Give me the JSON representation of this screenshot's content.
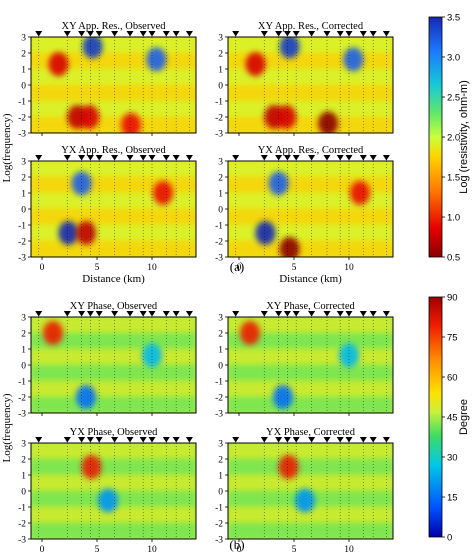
{
  "figure": {
    "part_labels": [
      "(a)",
      "(b)"
    ]
  },
  "chart_data": [
    {
      "type": "heatmap",
      "part": "(a)",
      "panels": [
        {
          "title": "XY App. Res., Observed",
          "ylabel": "Log(frequency)",
          "xlabel": ""
        },
        {
          "title": "XY App. Res., Corrected",
          "ylabel": "",
          "xlabel": ""
        },
        {
          "title": "YX App. Res., Observed",
          "ylabel": "",
          "xlabel": "Distance (km)"
        },
        {
          "title": "YX App. Res., Corrected",
          "ylabel": "",
          "xlabel": "Distance (km)"
        }
      ],
      "xlim": [
        -1,
        14
      ],
      "ylim": [
        -3,
        3
      ],
      "x_ticks": [
        0,
        5,
        10
      ],
      "y_ticks": [
        3,
        2,
        1,
        0,
        -1,
        -2,
        -3
      ],
      "station_x_km": [
        -0.3,
        2.3,
        3.6,
        4.4,
        5.2,
        6.6,
        8.0,
        9.2,
        10.0,
        11.3,
        12.2,
        13.4
      ],
      "colorbar": {
        "label": "Log (resistivity, ohm-m)",
        "ticks": [
          3.5,
          3.0,
          2.5,
          2.0,
          1.5,
          1.0,
          0.5
        ],
        "range": [
          0.5,
          3.5
        ]
      },
      "features": [
        {
          "panel": 0,
          "x": 1.5,
          "y": 1.3,
          "value": 0.8
        },
        {
          "panel": 0,
          "x": 3.2,
          "y": -2.0,
          "value": 0.7
        },
        {
          "panel": 0,
          "x": 4.3,
          "y": -2.0,
          "value": 0.8
        },
        {
          "panel": 0,
          "x": 8.1,
          "y": -2.5,
          "value": 0.9
        },
        {
          "panel": 0,
          "x": 4.6,
          "y": 2.4,
          "value": 3.4
        },
        {
          "panel": 0,
          "x": 10.4,
          "y": 1.6,
          "value": 3.2
        },
        {
          "panel": 1,
          "x": 1.5,
          "y": 1.3,
          "value": 0.8
        },
        {
          "panel": 1,
          "x": 3.2,
          "y": -2.0,
          "value": 0.7
        },
        {
          "panel": 1,
          "x": 4.3,
          "y": -2.0,
          "value": 0.8
        },
        {
          "panel": 1,
          "x": 8.1,
          "y": -2.4,
          "value": 0.5
        },
        {
          "panel": 1,
          "x": 4.6,
          "y": 2.4,
          "value": 3.4
        },
        {
          "panel": 1,
          "x": 10.4,
          "y": 1.6,
          "value": 3.2
        },
        {
          "panel": 2,
          "x": 3.6,
          "y": 1.6,
          "value": 3.2
        },
        {
          "panel": 2,
          "x": 2.4,
          "y": -1.5,
          "value": 3.5
        },
        {
          "panel": 2,
          "x": 4.0,
          "y": -1.5,
          "value": 0.7
        },
        {
          "panel": 2,
          "x": 11.0,
          "y": 1.0,
          "value": 0.9
        },
        {
          "panel": 3,
          "x": 3.6,
          "y": 1.6,
          "value": 3.2
        },
        {
          "panel": 3,
          "x": 2.4,
          "y": -1.5,
          "value": 3.5
        },
        {
          "panel": 3,
          "x": 4.6,
          "y": -2.5,
          "value": 0.5
        },
        {
          "panel": 3,
          "x": 11.0,
          "y": 1.0,
          "value": 0.9
        }
      ]
    },
    {
      "type": "heatmap",
      "part": "(b)",
      "panels": [
        {
          "title": "XY Phase, Observed",
          "ylabel": "Log(frequency)",
          "xlabel": ""
        },
        {
          "title": "XY Phase, Corrected",
          "ylabel": "",
          "xlabel": ""
        },
        {
          "title": "YX Phase, Observed",
          "ylabel": "",
          "xlabel": "Distance (km)"
        },
        {
          "title": "YX Phase, Corrected",
          "ylabel": "",
          "xlabel": "Distance (km)"
        }
      ],
      "xlim": [
        -1,
        14
      ],
      "ylim": [
        -3,
        3
      ],
      "x_ticks": [
        0,
        5,
        10
      ],
      "y_ticks": [
        3,
        2,
        1,
        0,
        -1,
        -2,
        -3
      ],
      "station_x_km": [
        -0.3,
        2.3,
        3.6,
        4.4,
        5.2,
        6.6,
        8.0,
        9.2,
        10.0,
        11.3,
        12.2,
        13.4
      ],
      "colorbar": {
        "label": "Degree",
        "ticks": [
          90,
          75,
          60,
          45,
          30,
          15,
          0
        ],
        "range": [
          0,
          90
        ]
      },
      "features": [
        {
          "panel": 0,
          "x": 1.0,
          "y": 2.0,
          "value": 80
        },
        {
          "panel": 0,
          "x": 4.0,
          "y": -2.0,
          "value": 15
        },
        {
          "panel": 0,
          "x": 10.0,
          "y": 0.6,
          "value": 25
        },
        {
          "panel": 1,
          "x": 1.0,
          "y": 2.0,
          "value": 80
        },
        {
          "panel": 1,
          "x": 4.0,
          "y": -2.0,
          "value": 15
        },
        {
          "panel": 1,
          "x": 10.0,
          "y": 0.6,
          "value": 25
        },
        {
          "panel": 2,
          "x": 4.5,
          "y": 1.5,
          "value": 80
        },
        {
          "panel": 2,
          "x": 6.0,
          "y": -0.6,
          "value": 20
        },
        {
          "panel": 3,
          "x": 4.5,
          "y": 1.5,
          "value": 80
        },
        {
          "panel": 3,
          "x": 6.0,
          "y": -0.6,
          "value": 20
        }
      ]
    }
  ]
}
